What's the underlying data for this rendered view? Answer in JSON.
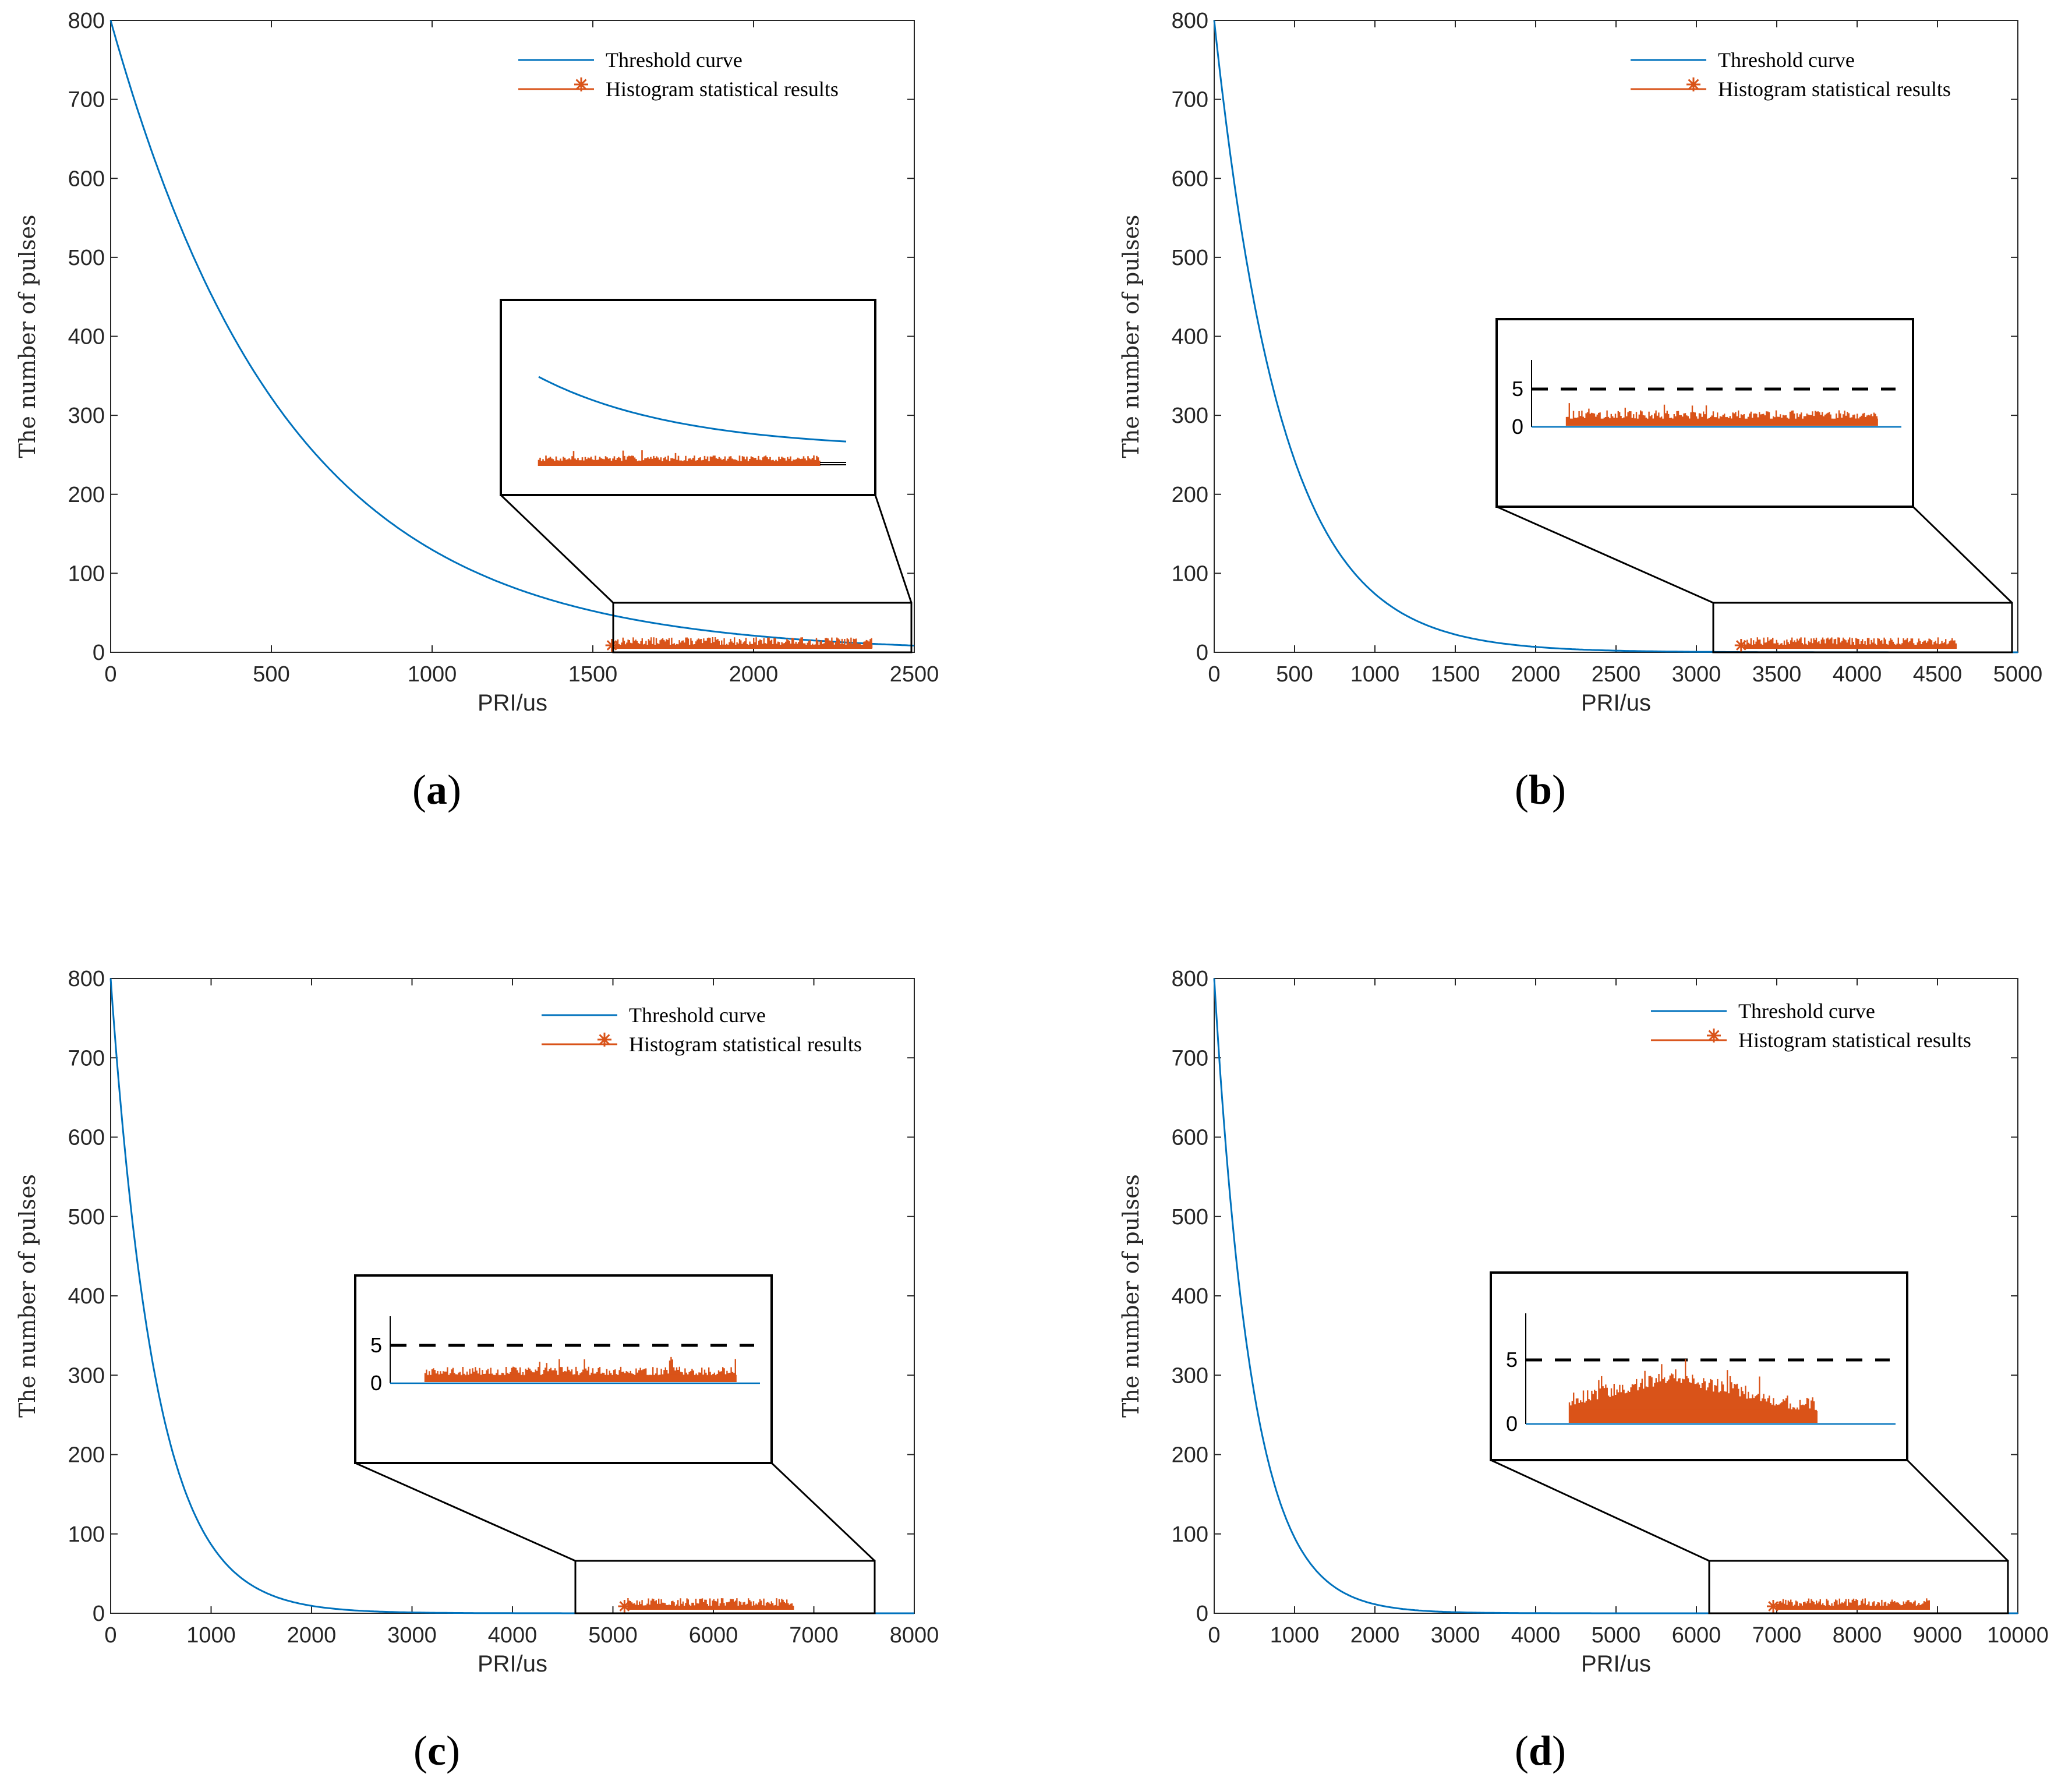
{
  "chart_data": [
    {
      "id": "a",
      "type": "line",
      "caption": "a",
      "xlabel": "PRI/us",
      "ylabel": "The number of pulses",
      "xlim": [
        0,
        2500
      ],
      "ylim": [
        0,
        800
      ],
      "xticks": [
        0,
        500,
        1000,
        1500,
        2000,
        2500
      ],
      "yticks": [
        0,
        100,
        200,
        300,
        400,
        500,
        600,
        700,
        800
      ],
      "legend": [
        "Threshold curve",
        "Histogram statistical results"
      ],
      "legend_position": "top-right",
      "series": [
        {
          "name": "Threshold curve",
          "kind": "exponential",
          "start": 800,
          "decay_constant": 550,
          "color": "#0072BD"
        },
        {
          "name": "Histogram statistical results",
          "kind": "histogram",
          "range": [
            1570,
            2370
          ],
          "typical_count": [
            1,
            5
          ],
          "color": "#D95319"
        }
      ],
      "zoom_x": [
        1540,
        2480
      ],
      "zoom_y": [
        0,
        65
      ],
      "inset_yticks": []
    },
    {
      "id": "b",
      "type": "line",
      "caption": "b",
      "xlabel": "PRI/us",
      "ylabel": "The number of pulses",
      "xlim": [
        0,
        5000
      ],
      "ylim": [
        0,
        800
      ],
      "xticks": [
        0,
        500,
        1000,
        1500,
        2000,
        2500,
        3000,
        3500,
        4000,
        4500,
        5000
      ],
      "yticks": [
        0,
        100,
        200,
        300,
        400,
        500,
        600,
        700,
        800
      ],
      "legend": [
        "Threshold curve",
        "Histogram statistical results"
      ],
      "legend_position": "top-right",
      "series": [
        {
          "name": "Threshold curve",
          "kind": "exponential",
          "start": 800,
          "decay_constant": 420,
          "color": "#0072BD"
        },
        {
          "name": "Histogram statistical results",
          "kind": "histogram",
          "range": [
            3300,
            4620
          ],
          "typical_count": [
            1,
            4
          ],
          "color": "#D95319"
        }
      ],
      "zoom_x": [
        3100,
        4900
      ],
      "zoom_y": [
        0,
        65
      ],
      "inset_yticks": [
        "0",
        "5"
      ],
      "inset_threshold": 5
    },
    {
      "id": "c",
      "type": "line",
      "caption": "c",
      "xlabel": "PRI/us",
      "ylabel": "The number of pulses",
      "xlim": [
        0,
        8000
      ],
      "ylim": [
        0,
        800
      ],
      "xticks": [
        0,
        1000,
        2000,
        3000,
        4000,
        5000,
        6000,
        7000,
        8000
      ],
      "yticks": [
        0,
        100,
        200,
        300,
        400,
        500,
        600,
        700,
        800
      ],
      "legend": [
        "Threshold curve",
        "Histogram statistical results"
      ],
      "legend_position": "top-right",
      "series": [
        {
          "name": "Threshold curve",
          "kind": "exponential",
          "start": 800,
          "decay_constant": 450,
          "color": "#0072BD"
        },
        {
          "name": "Histogram statistical results",
          "kind": "histogram",
          "range": [
            5150,
            6800
          ],
          "typical_count": [
            1,
            4
          ],
          "color": "#D95319"
        }
      ],
      "zoom_x": [
        4600,
        7550
      ],
      "zoom_y": [
        0,
        65
      ],
      "inset_yticks": [
        "0",
        "5"
      ],
      "inset_threshold": 5
    },
    {
      "id": "d",
      "type": "line",
      "caption": "d",
      "xlabel": "PRI/us",
      "ylabel": "The number of pulses",
      "xlim": [
        0,
        10000
      ],
      "ylim": [
        0,
        800
      ],
      "xticks": [
        0,
        1000,
        2000,
        3000,
        4000,
        5000,
        6000,
        7000,
        8000,
        9000,
        10000
      ],
      "yticks": [
        0,
        100,
        200,
        300,
        400,
        500,
        600,
        700,
        800
      ],
      "legend": [
        "Threshold curve",
        "Histogram statistical results"
      ],
      "legend_position": "top-right",
      "series": [
        {
          "name": "Threshold curve",
          "kind": "exponential",
          "start": 800,
          "decay_constant": 470,
          "color": "#0072BD"
        },
        {
          "name": "Histogram statistical results",
          "kind": "histogram",
          "range": [
            7000,
            8900
          ],
          "typical_count": [
            1,
            5
          ],
          "color": "#D95319"
        }
      ],
      "zoom_x": [
        6150,
        9850
      ],
      "zoom_y": [
        0,
        65
      ],
      "inset_yticks": [
        "0",
        "5"
      ],
      "inset_threshold": 5
    }
  ]
}
